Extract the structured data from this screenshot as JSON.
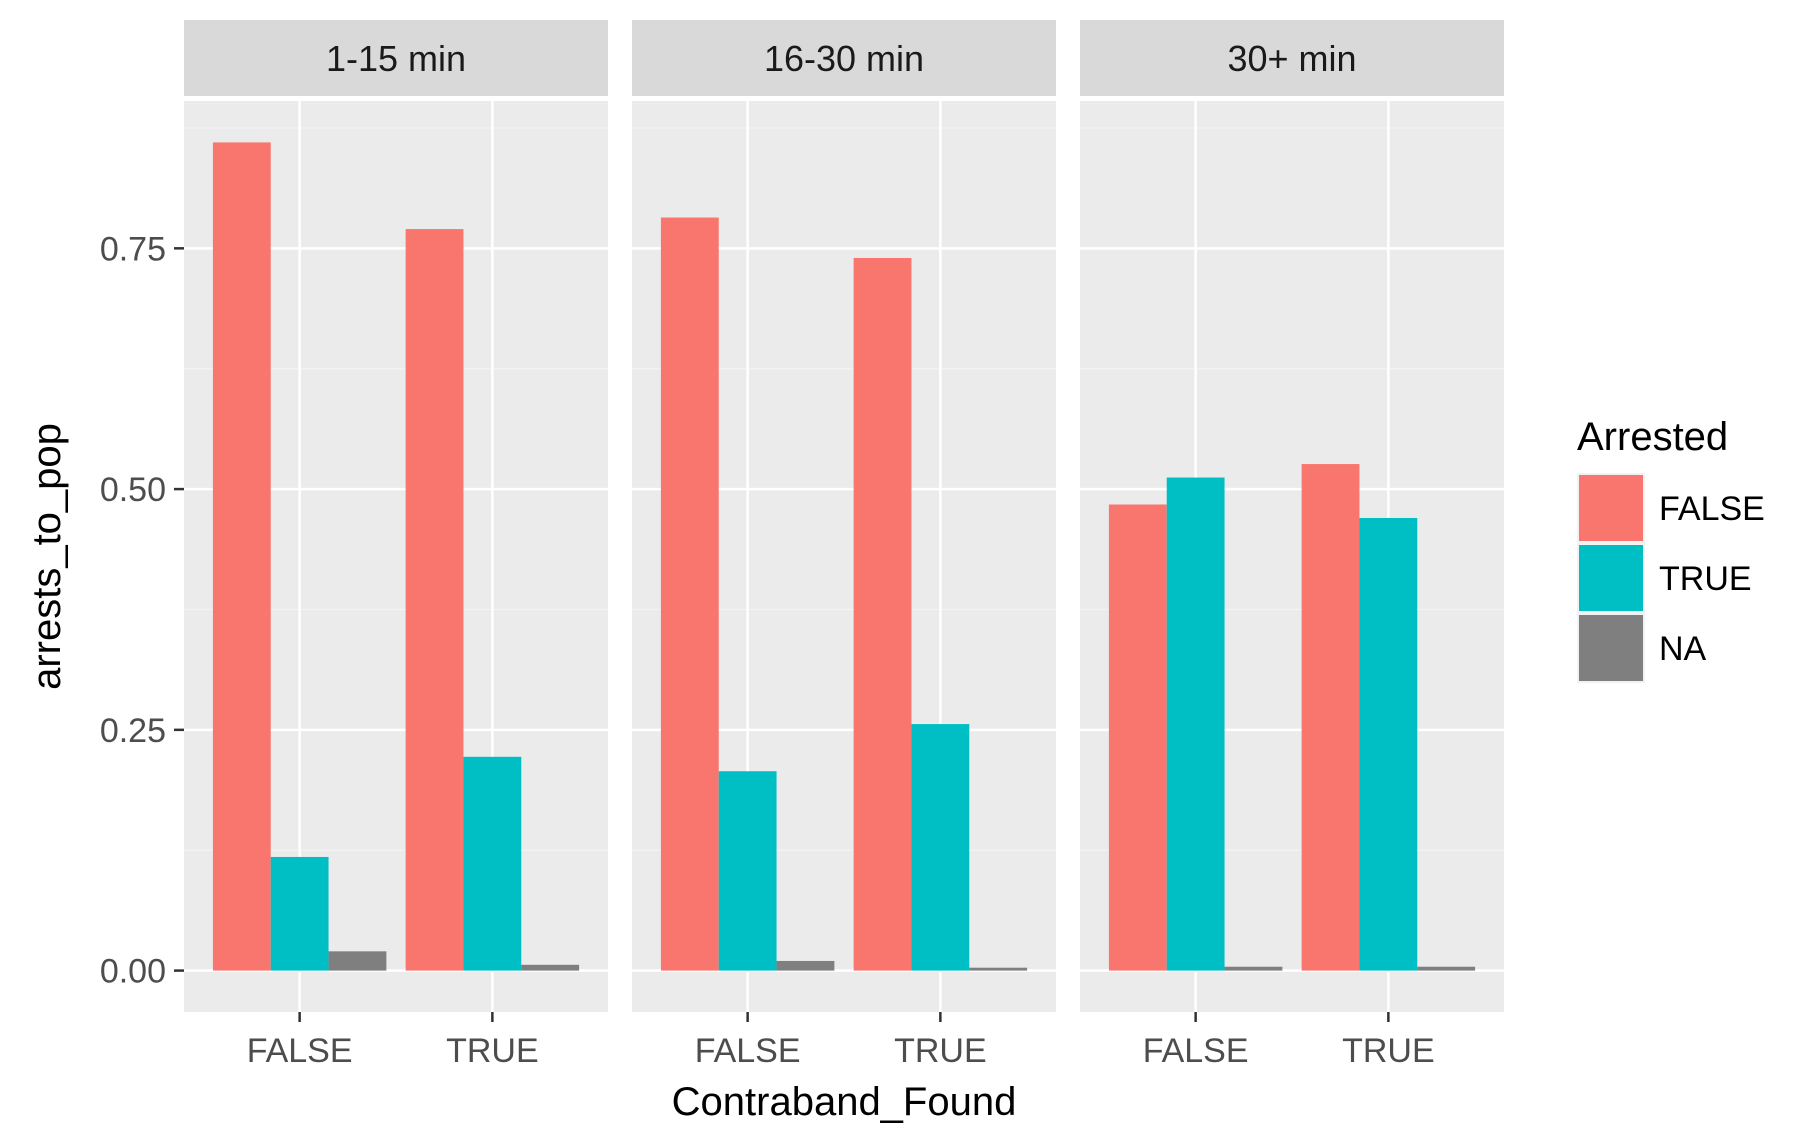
{
  "chart_data": {
    "type": "bar",
    "facets": [
      {
        "label": "1-15 min",
        "categories": [
          "FALSE",
          "TRUE"
        ],
        "series": [
          {
            "name": "FALSE",
            "values": [
              0.86,
              0.77
            ]
          },
          {
            "name": "TRUE",
            "values": [
              0.118,
              0.222
            ]
          },
          {
            "name": "NA",
            "values": [
              0.02,
              0.006
            ]
          }
        ]
      },
      {
        "label": "16-30 min",
        "categories": [
          "FALSE",
          "TRUE"
        ],
        "series": [
          {
            "name": "FALSE",
            "values": [
              0.782,
              0.74
            ]
          },
          {
            "name": "TRUE",
            "values": [
              0.207,
              0.256
            ]
          },
          {
            "name": "NA",
            "values": [
              0.01,
              0.003
            ]
          }
        ]
      },
      {
        "label": "30+ min",
        "categories": [
          "FALSE",
          "TRUE"
        ],
        "series": [
          {
            "name": "FALSE",
            "values": [
              0.484,
              0.526
            ]
          },
          {
            "name": "TRUE",
            "values": [
              0.512,
              0.47
            ]
          },
          {
            "name": "NA",
            "values": [
              0.004,
              0.004
            ]
          }
        ]
      }
    ],
    "xlabel": "Contraband_Found",
    "ylabel": "arrests_to_pop",
    "ylim": [
      -0.043,
      0.903
    ],
    "yticks": [
      0,
      0.25,
      0.5,
      0.75
    ],
    "ytick_labels": [
      "0.00",
      "0.25",
      "0.50",
      "0.75"
    ],
    "grid": true,
    "legend": {
      "title": "Arrested",
      "placement": "right",
      "entries": [
        {
          "label": "FALSE",
          "color": "#F8766D"
        },
        {
          "label": "TRUE",
          "color": "#00BFC4"
        },
        {
          "label": "NA",
          "color": "#7F7F7F"
        }
      ]
    },
    "colors": {
      "panel_bg": "#EBEBEB",
      "strip_bg": "#D9D9D9",
      "grid_major": "#FFFFFF",
      "grid_minor": "#F2F2F2"
    }
  }
}
